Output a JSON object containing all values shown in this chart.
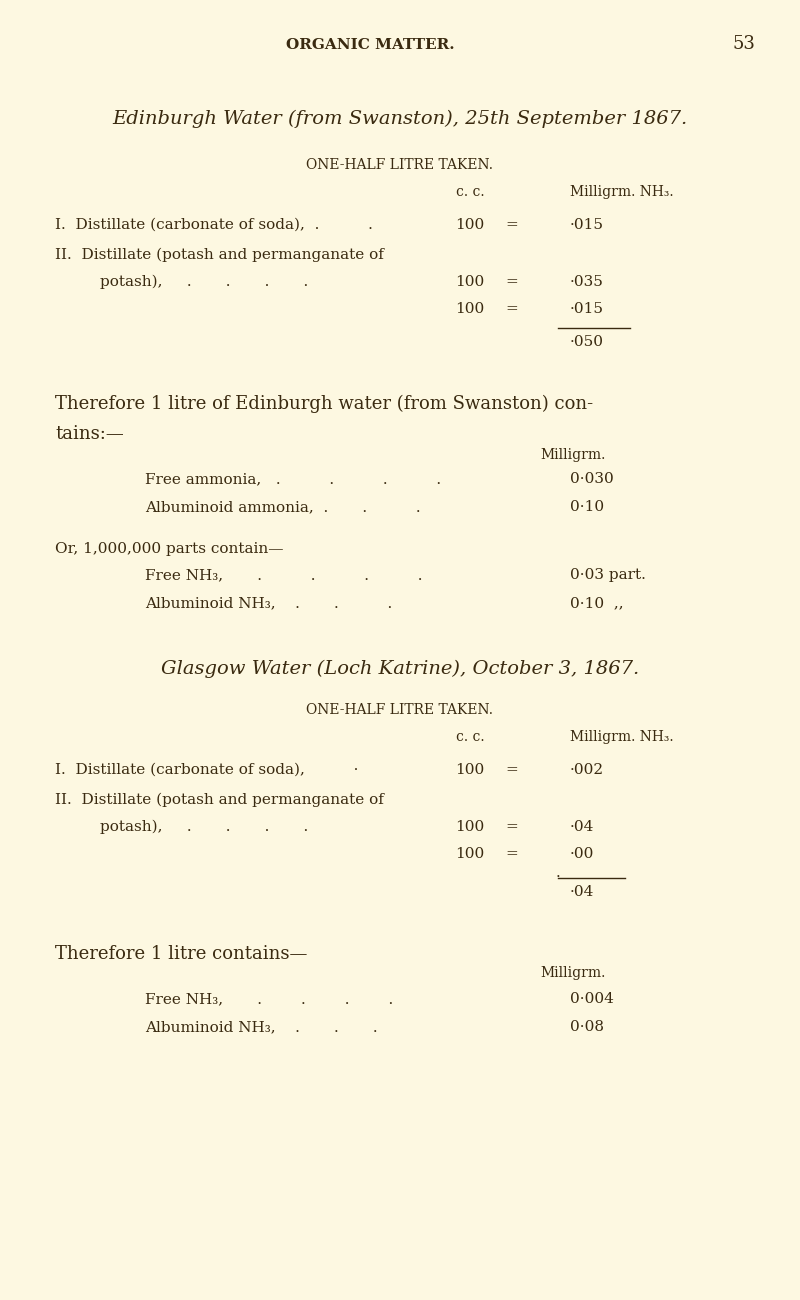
{
  "bg_color": "#fdf8e1",
  "text_color": "#3a2a10",
  "header_text": "ORGANIC MATTER.",
  "page_number": "53",
  "title1": "Edinburgh Water (from Swanston), 25th September 1867.",
  "subtitle1": "ONE-HALF LITRE TAKEN.",
  "col_header_cc": "c. c.",
  "col_header_mg": "Milligrm. NH₃.",
  "edin_row1_label": "I.  Distillate (carbonate of soda),  .          .",
  "edin_row1_cc": "100",
  "edin_row1_eq": "=",
  "edin_row1_val": "·015",
  "edin_row2_label": "II.  Distillate (potash and permanganate of",
  "edin_row2_label2": "potash),     .       .       .       .",
  "edin_row2a_cc": "100",
  "edin_row2a_eq": "=",
  "edin_row2a_val": "·035",
  "edin_row2b_cc": "100",
  "edin_row2b_eq": "=",
  "edin_row2b_val": "·015",
  "edin_total": "·050",
  "edin_therefore": "Therefore 1 litre of Edinburgh water (from Swanston) con-",
  "edin_therefore2": "tains:—",
  "edin_milligrm": "Milligrm.",
  "edin_free_label": "Free ammonia,   .          .          .          .",
  "edin_free_val": "0·030",
  "edin_alb_label": "Albuminoid ammonia,  .       .          .",
  "edin_alb_val": "0·10",
  "edin_or": "Or, 1,000,000 parts contain—",
  "edin_free_nh3_label": "Free NH₃,       .          .          .          .",
  "edin_free_nh3_val": "0·03 part.",
  "edin_alb_nh3_label": "Albuminoid NH₃,    .       .          .",
  "edin_alb_nh3_val": "0·10  ,,",
  "title2": "Glasgow Water (Loch Katrine), October 3, 1867.",
  "subtitle2": "ONE-HALF LITRE TAKEN.",
  "glas_row1_label": "I.  Distillate (carbonate of soda),          ·",
  "glas_row1_cc": "100",
  "glas_row1_eq": "=",
  "glas_row1_val": "·002",
  "glas_row2_label": "II.  Distillate (potash and permanganate of",
  "glas_row2_label2": "potash),     .       .       .       .",
  "glas_row2a_cc": "100",
  "glas_row2a_eq": "=",
  "glas_row2a_val": "·04",
  "glas_row2b_cc": "100",
  "glas_row2b_eq": "=",
  "glas_row2b_val": "·00",
  "glas_dot": "·",
  "glas_total": "·04",
  "glas_therefore": "Therefore 1 litre contains—",
  "glas_milligrm": "Milligrm.",
  "glas_free_label": "Free NH₃,       .        .        .        .",
  "glas_free_val": "0·004",
  "glas_alb_label": "Albuminoid NH₃,    .       .       .",
  "glas_alb_val": "0·08"
}
